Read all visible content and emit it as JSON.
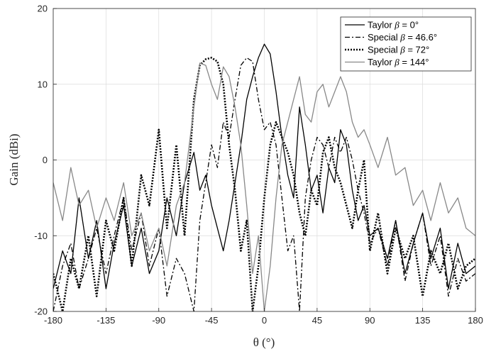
{
  "chart_data": {
    "type": "line",
    "title": "",
    "xlabel": "θ (°)",
    "ylabel": "Gain (dBi)",
    "xlim": [
      -180,
      180
    ],
    "ylim": [
      -20,
      20
    ],
    "xticks": [
      -180,
      -135,
      -90,
      -45,
      0,
      45,
      90,
      135,
      180
    ],
    "yticks": [
      -20,
      -10,
      0,
      10,
      20
    ],
    "xtick_labels": [
      "-180",
      "-135",
      "-90",
      "-45",
      "0",
      "45",
      "90",
      "135",
      "180"
    ],
    "ytick_labels": [
      "-20",
      "-10",
      "0",
      "10",
      "20"
    ],
    "grid": true,
    "legend_position": "top-right",
    "series": [
      {
        "name": "Taylor β = 0°",
        "label_text": "Taylor ",
        "label_beta": "β",
        "label_value": " = 0°",
        "color": "#000000",
        "style": "solid",
        "x": [
          -180,
          -172,
          -165,
          -158,
          -150,
          -143,
          -135,
          -128,
          -120,
          -113,
          -105,
          -98,
          -90,
          -83,
          -75,
          -68,
          -60,
          -55,
          -50,
          -45,
          -40,
          -35,
          -30,
          -25,
          -20,
          -15,
          -10,
          -5,
          0,
          5,
          10,
          15,
          20,
          25,
          30,
          35,
          40,
          45,
          50,
          55,
          60,
          65,
          70,
          75,
          80,
          85,
          90,
          97,
          105,
          112,
          120,
          127,
          135,
          142,
          150,
          157,
          165,
          172,
          180
        ],
        "y": [
          -17,
          -12,
          -15,
          -5,
          -13,
          -8,
          -17,
          -11,
          -6,
          -14,
          -9,
          -15,
          -12,
          -5,
          -10,
          -3,
          1,
          -4,
          -2,
          -6,
          -9,
          -12,
          -8,
          -3,
          2,
          8,
          11,
          13.5,
          15.3,
          14,
          9,
          3,
          -2,
          -5,
          7,
          2,
          -4,
          -2,
          -7,
          -1,
          -3,
          4,
          2,
          -4,
          -8,
          -6,
          -10,
          -9,
          -13,
          -8,
          -15,
          -11,
          -7,
          -13,
          -9,
          -17,
          -11,
          -15,
          -14
        ]
      },
      {
        "name": "Special β = 46.6°",
        "label_text": "Special ",
        "label_beta": "β",
        "label_value": " = 46.6°",
        "color": "#000000",
        "style": "dashdot",
        "x": [
          -180,
          -172,
          -165,
          -158,
          -150,
          -143,
          -135,
          -128,
          -120,
          -113,
          -105,
          -98,
          -90,
          -83,
          -75,
          -68,
          -60,
          -55,
          -50,
          -45,
          -40,
          -35,
          -30,
          -25,
          -20,
          -15,
          -10,
          -5,
          0,
          5,
          10,
          15,
          20,
          25,
          30,
          35,
          40,
          45,
          50,
          55,
          60,
          65,
          70,
          75,
          80,
          85,
          90,
          97,
          105,
          112,
          120,
          127,
          135,
          142,
          150,
          157,
          165,
          172,
          180
        ],
        "y": [
          -20,
          -14,
          -11,
          -17,
          -13,
          -9,
          -15,
          -10,
          -5,
          -12,
          -7,
          -14,
          -9,
          -18,
          -13,
          -15,
          -20,
          -8,
          -3,
          2,
          -1,
          5,
          3,
          8,
          12.5,
          13.5,
          13,
          8,
          4,
          5,
          2,
          -5,
          -12,
          -10,
          -20,
          -5,
          0,
          3,
          2,
          -1,
          3,
          1,
          3,
          0,
          -4,
          -7,
          -11,
          -9,
          -14,
          -8,
          -16,
          -11,
          -7,
          -14,
          -10,
          -18,
          -13,
          -16,
          -15
        ]
      },
      {
        "name": "Special β = 72°",
        "label_text": "Special ",
        "label_beta": "β",
        "label_value": " = 72°",
        "color": "#000000",
        "style": "dotted",
        "x": [
          -180,
          -172,
          -165,
          -158,
          -150,
          -143,
          -135,
          -128,
          -120,
          -113,
          -105,
          -98,
          -90,
          -83,
          -75,
          -68,
          -60,
          -55,
          -50,
          -45,
          -40,
          -35,
          -30,
          -25,
          -20,
          -15,
          -10,
          -5,
          0,
          5,
          10,
          15,
          20,
          25,
          30,
          35,
          40,
          45,
          50,
          55,
          60,
          65,
          70,
          75,
          80,
          85,
          90,
          97,
          105,
          112,
          120,
          127,
          135,
          142,
          150,
          157,
          165,
          172,
          180
        ],
        "y": [
          -15,
          -20,
          -13,
          -17,
          -10,
          -18,
          -8,
          -12,
          -5,
          -14,
          -2,
          -6,
          4,
          -9,
          2,
          -10,
          8,
          12.5,
          13.3,
          13.5,
          13,
          10,
          2,
          -4,
          -12,
          -8,
          -20,
          -14,
          -5,
          2,
          5,
          3,
          1,
          -2,
          -7,
          -10,
          -4,
          -6,
          1,
          3,
          -1,
          -3,
          -6,
          -9,
          -4,
          0,
          -12,
          -7,
          -15,
          -9,
          -13,
          -10,
          -18,
          -12,
          -15,
          -11,
          -17,
          -14,
          -13
        ]
      },
      {
        "name": "Taylor β = 144°",
        "label_text": "Taylor ",
        "label_beta": "β",
        "label_value": " = 144°",
        "color": "#888888",
        "style": "solid",
        "x": [
          -180,
          -172,
          -165,
          -158,
          -150,
          -143,
          -135,
          -128,
          -120,
          -113,
          -105,
          -98,
          -90,
          -83,
          -75,
          -68,
          -60,
          -55,
          -50,
          -45,
          -40,
          -35,
          -30,
          -25,
          -20,
          -15,
          -10,
          -5,
          0,
          5,
          10,
          15,
          20,
          25,
          30,
          35,
          40,
          45,
          50,
          55,
          60,
          65,
          70,
          75,
          80,
          85,
          90,
          97,
          105,
          112,
          120,
          127,
          135,
          142,
          150,
          157,
          165,
          172,
          180
        ],
        "y": [
          -3,
          -8,
          -1,
          -6,
          -4,
          -9,
          -5,
          -8,
          -3,
          -10,
          -7,
          -12,
          -9,
          -14,
          -6,
          -3,
          7,
          12.8,
          12.5,
          10,
          8,
          12.3,
          11,
          7,
          2,
          -6,
          -15,
          -10,
          -20,
          -14,
          -5,
          2,
          5,
          8,
          11,
          6,
          5,
          9,
          10,
          7,
          9,
          11,
          9,
          5,
          3,
          4,
          2,
          -1,
          3,
          -2,
          -1,
          -6,
          -4,
          -8,
          -3,
          -7,
          -5,
          -9,
          -10
        ]
      }
    ]
  }
}
